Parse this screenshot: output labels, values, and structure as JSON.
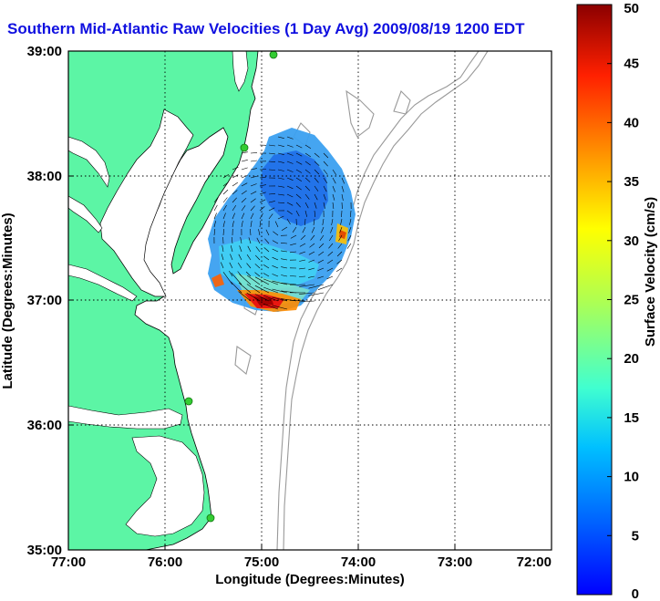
{
  "title": "Southern Mid-Atlantic Raw Velocities (1 Day Avg) 2009/08/19 1200 EDT",
  "map": {
    "xlabel": "Longitude (Degrees:Minutes)",
    "ylabel": "Latitude (Degrees:Minutes)",
    "x_ticks": [
      "77:00",
      "76:00",
      "75:00",
      "74:00",
      "73:00",
      "72:00"
    ],
    "y_ticks": [
      "39:00",
      "38:00",
      "37:00",
      "36:00",
      "35:00"
    ],
    "lon_range": [
      -77,
      -72
    ],
    "lat_range": [
      35,
      39
    ],
    "grid": "dotted",
    "land_color": "#5cf5a5",
    "bathymetry_color": "#999999",
    "station_color": "#33cc33"
  },
  "colorbar": {
    "label": "Surface Velocity (cm/s)",
    "range": [
      0,
      50
    ],
    "ticks": [
      "0",
      "5",
      "10",
      "15",
      "20",
      "25",
      "30",
      "35",
      "40",
      "45",
      "50"
    ],
    "colormap": "jet"
  }
}
